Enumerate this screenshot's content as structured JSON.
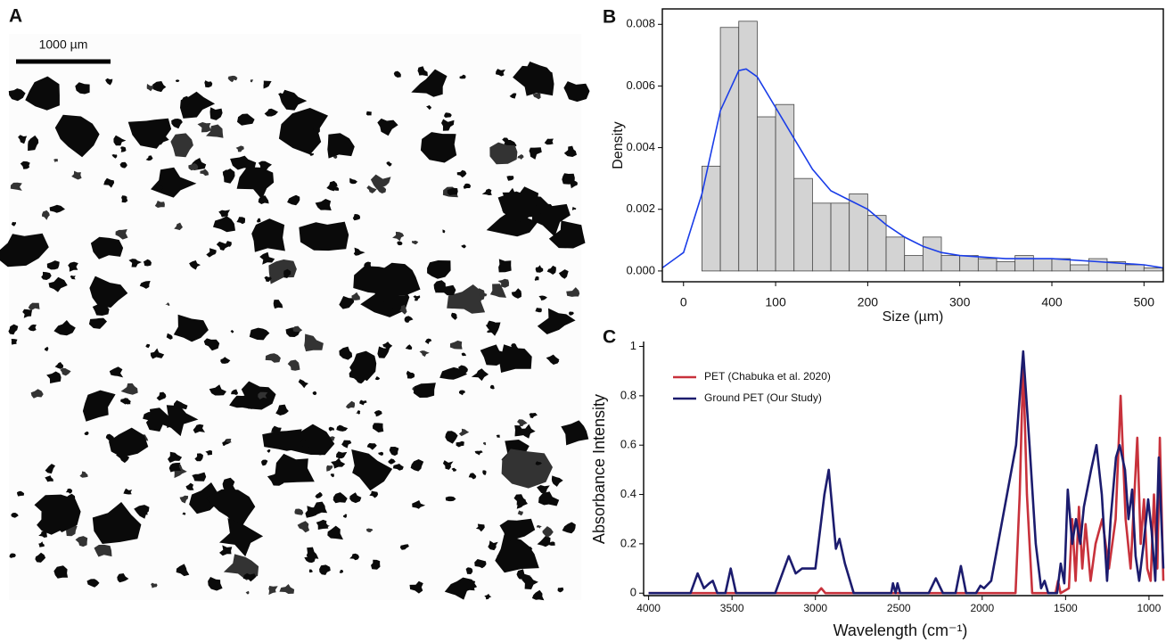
{
  "image_panel": {
    "panel_label": "A",
    "scale_bar_label": "1000 µm"
  },
  "chart_data": [
    {
      "type": "histogram",
      "panel_label": "B",
      "xlabel": "Size (µm)",
      "ylabel": "Density",
      "bins": [
        20,
        40,
        60,
        80,
        100,
        120,
        140,
        160,
        180,
        200,
        220,
        240,
        260,
        280,
        300,
        320,
        340,
        360,
        380,
        400,
        420,
        440,
        460,
        480,
        500,
        520
      ],
      "values": [
        0.0034,
        0.0079,
        0.0081,
        0.005,
        0.0054,
        0.003,
        0.0022,
        0.0022,
        0.0025,
        0.0018,
        0.0011,
        0.0005,
        0.0011,
        0.0005,
        0.0005,
        0.0004,
        0.0003,
        0.0005,
        0.0004,
        0.0004,
        0.0002,
        0.0004,
        0.0003,
        0.0002,
        0.0001
      ],
      "color": "#d3d3d3",
      "kde": {
        "color": "#1a3de8",
        "x": [
          -23,
          0,
          20,
          40,
          60,
          68,
          80,
          100,
          120,
          140,
          160,
          180,
          200,
          220,
          240,
          260,
          280,
          300,
          350,
          400,
          450,
          500,
          521
        ],
        "values": [
          0.0001,
          0.0006,
          0.0025,
          0.0052,
          0.0065,
          0.00655,
          0.0063,
          0.0053,
          0.0043,
          0.0033,
          0.0026,
          0.0023,
          0.002,
          0.0015,
          0.0011,
          0.0008,
          0.0006,
          0.0005,
          0.0004,
          0.0004,
          0.0003,
          0.0002,
          0.0001
        ]
      },
      "xlim": [
        -23,
        521
      ],
      "ylim": [
        -0.00035,
        0.0085
      ],
      "xticks": [
        0,
        100,
        200,
        300,
        400,
        500
      ],
      "yticks": [
        {
          "value": 0,
          "label": "0.000"
        },
        {
          "value": 0.002,
          "label": "0.002"
        },
        {
          "value": 0.004,
          "label": "0.004"
        },
        {
          "value": 0.006,
          "label": "0.006"
        },
        {
          "value": 0.008,
          "label": "0.008"
        }
      ]
    },
    {
      "type": "line",
      "panel_label": "C",
      "xlabel": "Wavelength (cm⁻¹)",
      "ylabel": "Absorbance Intensity",
      "legend": "upper-left",
      "xlim": [
        4030,
        914
      ],
      "ylim": [
        -0.01,
        1.02
      ],
      "xticks": [
        4000,
        3500,
        3000,
        2500,
        2000,
        1500,
        1000
      ],
      "yticks": [
        0,
        0.2,
        0.4,
        0.6,
        0.8,
        1
      ],
      "series": [
        {
          "name": "PET (Chabuka et al. 2020)",
          "color": "#c8323c",
          "x": [
            4000,
            2990,
            2965,
            2940,
            1800,
            1775,
            1754,
            1732,
            1700,
            1560,
            1545,
            1530,
            1480,
            1460,
            1440,
            1420,
            1400,
            1380,
            1350,
            1320,
            1280,
            1240,
            1200,
            1170,
            1140,
            1110,
            1070,
            1050,
            1030,
            1010,
            990,
            970,
            950,
            935,
            914
          ],
          "values": [
            0,
            0,
            0.02,
            0,
            0,
            0.4,
            0.93,
            0.4,
            0,
            0,
            0.05,
            0,
            0.02,
            0.3,
            0.05,
            0.35,
            0.1,
            0.28,
            0.05,
            0.2,
            0.3,
            0.1,
            0.3,
            0.8,
            0.3,
            0.1,
            0.63,
            0.2,
            0.38,
            0.1,
            0.05,
            0.4,
            0.1,
            0.63,
            0.05
          ]
        },
        {
          "name": "Ground PET (Our Study)",
          "color": "#1c1c6e",
          "x": [
            4000,
            3749,
            3706,
            3668,
            3636,
            3615,
            3588,
            3540,
            3508,
            3476,
            3241,
            3187,
            3160,
            3118,
            3080,
            3000,
            2946,
            2920,
            2893,
            2877,
            2856,
            2823,
            2770,
            2545,
            2535,
            2519,
            2508,
            2492,
            2321,
            2278,
            2235,
            2160,
            2128,
            2096,
            2037,
            2011,
            1989,
            1946,
            1797,
            1754,
            1716,
            1679,
            1647,
            1626,
            1604,
            1551,
            1529,
            1508,
            1487,
            1460,
            1438,
            1412,
            1390,
            1347,
            1315,
            1283,
            1251,
            1230,
            1198,
            1176,
            1144,
            1123,
            1101,
            1080,
            1059,
            1032,
            1005,
            984,
            962,
            941,
            914
          ],
          "values": [
            0,
            0,
            0.08,
            0.02,
            0.04,
            0.05,
            0,
            0,
            0.1,
            0,
            0,
            0.1,
            0.15,
            0.08,
            0.1,
            0.1,
            0.4,
            0.5,
            0.3,
            0.18,
            0.22,
            0.12,
            0,
            0,
            0.04,
            0,
            0.04,
            0,
            0,
            0.06,
            0,
            0,
            0.11,
            0,
            0,
            0.03,
            0.02,
            0.05,
            0.6,
            0.98,
            0.6,
            0.2,
            0.02,
            0.05,
            0,
            0,
            0.12,
            0.04,
            0.42,
            0.2,
            0.3,
            0.2,
            0.35,
            0.5,
            0.6,
            0.4,
            0.05,
            0.3,
            0.55,
            0.6,
            0.5,
            0.3,
            0.42,
            0.15,
            0.05,
            0.2,
            0.38,
            0.25,
            0.05,
            0.55,
            0.1
          ]
        }
      ]
    }
  ]
}
